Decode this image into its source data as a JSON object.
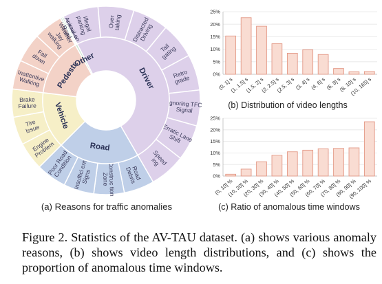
{
  "colors": {
    "driver": "#ddd0ea",
    "road": "#bfcfe8",
    "vehicle": "#f6efc7",
    "pedestrian": "#f3d2c7",
    "other": "#cfe6d6",
    "bar_fill": "#f9dcd2",
    "bar_edge": "#e39886",
    "inner_text": "#3a3a5a"
  },
  "panel_labels": {
    "a": "(a) Reasons for traffic anomalies",
    "b": "(b) Distribution of video lengths",
    "c": "(c) Ratio of anomalous time windows"
  },
  "caption": "Figure 2. Statistics of the AV-TAU dataset. (a) shows various anomaly reasons, (b) shows video length distributions, and (c) shows the proportion of anomalous time windows.",
  "chart_data": [
    {
      "type": "pie",
      "title": "(a) Reasons for traffic anomalies",
      "groups": [
        {
          "key": "driver",
          "name": "Driver",
          "items": [
            "Illegal parking",
            "Over taking",
            "Distracted Driving",
            "Tail gating",
            "Retro grade",
            "Ignoring TFC Signal",
            "Erratic Lane Shift",
            "Speed ing"
          ]
        },
        {
          "key": "road",
          "name": "Road",
          "items": [
            "Road Debris",
            "Construc tion Zone",
            "Insuffici ent Signs",
            "Poor Road Condition"
          ]
        },
        {
          "key": "vehicle",
          "name": "Vehicle",
          "items": [
            "Engine Problem",
            "Tire Issue",
            "Brake Failure"
          ]
        },
        {
          "key": "pedestrian",
          "name": "Pedestr.",
          "items": [
            "Inattentive Walking",
            "Fall down",
            "Jay walking"
          ]
        },
        {
          "key": "other",
          "name": "Other",
          "items": [
            "Adverse Weather",
            "Animal on Road"
          ]
        }
      ]
    },
    {
      "type": "bar",
      "title": "(b) Distribution of video lengths",
      "categories": [
        "(0, 1] s",
        "(1, 1.5] s",
        "(1.5, 2] s",
        "(2, 2.5] s",
        "(2.5, 3] s",
        "(3, 4] s",
        "(4, 6] s",
        "(6, 8] s",
        "(8, 10] s",
        "(10, 165] s"
      ],
      "values": [
        15.3,
        22.6,
        19.2,
        12.2,
        8.4,
        9.8,
        7.9,
        2.3,
        1.0,
        1.1
      ],
      "yticks": [
        "0%",
        "5%",
        "10%",
        "15%",
        "20%",
        "25%"
      ],
      "ylim": [
        0,
        25
      ]
    },
    {
      "type": "bar",
      "title": "(c) Ratio of anomalous time windows",
      "categories": [
        "(0, 10] %",
        "(10, 20] %",
        "(20, 30] %",
        "(30, 40] %",
        "(40, 50] %",
        "(50, 60] %",
        "(60, 70] %",
        "(70, 80] %",
        "(80, 90] %",
        "(90, 100] %"
      ],
      "values": [
        0.8,
        3.0,
        6.2,
        9.0,
        10.5,
        11.2,
        11.8,
        12.0,
        12.2,
        23.5
      ],
      "yticks": [
        "0%",
        "5%",
        "10%",
        "15%",
        "20%",
        "25%"
      ],
      "ylim": [
        0,
        25
      ]
    }
  ]
}
